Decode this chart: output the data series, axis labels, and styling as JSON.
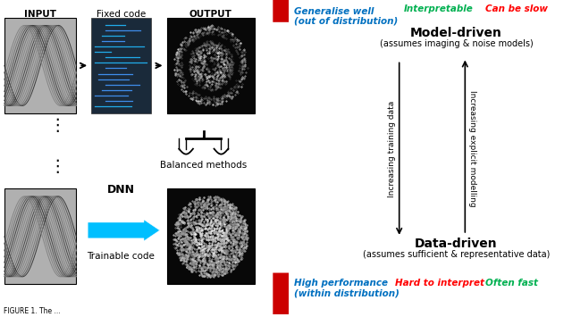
{
  "bg_color": "#ffffff",
  "top_labels": {
    "generalise_well": "Generalise well",
    "out_of_dist": "(out of distribution)",
    "interpretable": "Interpretable",
    "can_be_slow": "Can be slow"
  },
  "bottom_labels": {
    "high_performance": "High performance",
    "within_dist": "(within distribution)",
    "hard_to_interpret": "Hard to interpret",
    "often_fast": "Often fast"
  },
  "model_driven": "Model-driven",
  "model_driven_sub": "(assumes imaging & noise models)",
  "data_driven": "Data-driven",
  "data_driven_sub": "(assumes sufficient & representative data)",
  "increasing_training": "Increasing training data",
  "increasing_explicit": "Increasing explicit modelling",
  "input_label": "INPUT",
  "fixed_code_label": "Fixed code",
  "output_label": "OUTPUT",
  "balanced_label": "Balanced methods",
  "dnn_label": "DNN",
  "trainable_label": "Trainable code",
  "figure_caption": "FIGURE 1. The ...",
  "colors": {
    "blue_text": "#0070C0",
    "green_text": "#00B050",
    "red_text": "#FF0000",
    "black": "#000000",
    "red_arrow": "#CC0000",
    "cyan_arrow": "#00BFFF",
    "dark_code_bg": "#1a2a3a"
  }
}
